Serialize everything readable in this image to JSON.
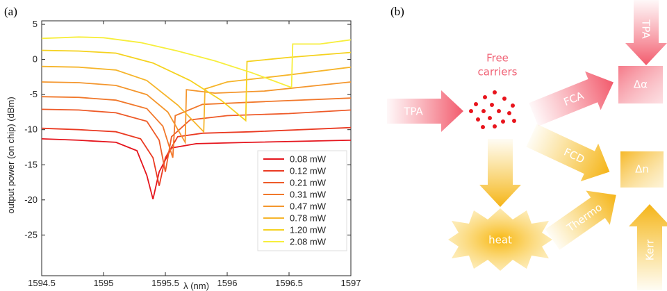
{
  "panel_labels": [
    "(a)",
    "(b)"
  ],
  "chart_data": {
    "type": "line",
    "xlabel": "λ (nm)",
    "ylabel": "output power (on chip) (dBm)",
    "xlim": [
      1594.5,
      1597
    ],
    "ylim": [
      -30.8,
      5.5
    ],
    "xticks": [
      1594.5,
      1595,
      1595.5,
      1596,
      1596.5,
      1597
    ],
    "yticks": [
      5,
      0,
      -5,
      -10,
      -15,
      -20,
      -25
    ],
    "legend": "lower right",
    "series": [
      {
        "name": "0.08 mW",
        "color": "#e5151d",
        "x": [
          1594.5,
          1594.8,
          1595.1,
          1595.27,
          1595.35,
          1595.4,
          1595.45,
          1595.55,
          1595.75,
          1596.2,
          1597
        ],
        "values": [
          -11.3,
          -11.5,
          -11.8,
          -13,
          -16.5,
          -19.9,
          -16,
          -12.6,
          -12,
          -11.8,
          -11.5
        ]
      },
      {
        "name": "0.12 mW",
        "color": "#ea3a22",
        "x": [
          1594.5,
          1594.8,
          1595.1,
          1595.3,
          1595.4,
          1595.45,
          1595.5,
          1595.6,
          1595.8,
          1596.2,
          1597
        ],
        "values": [
          -9.8,
          -10,
          -10.3,
          -11.3,
          -14,
          -18,
          -14,
          -11,
          -10.5,
          -10.3,
          -9.7
        ]
      },
      {
        "name": "0.21 mW",
        "color": "#ee5a28",
        "x": [
          1594.5,
          1594.8,
          1595.1,
          1595.35,
          1595.45,
          1595.5,
          1595.55,
          1595.7,
          1596,
          1596.5,
          1597
        ],
        "values": [
          -7.1,
          -7.2,
          -7.6,
          -8.8,
          -11.5,
          -16,
          -11,
          -8.6,
          -8,
          -7.7,
          -7.2
        ]
      },
      {
        "name": "0.31 mW",
        "color": "#f1782b",
        "x": [
          1594.5,
          1594.8,
          1595.1,
          1595.35,
          1595.48,
          1595.56,
          1595.58,
          1595.8,
          1596.3,
          1597
        ],
        "values": [
          -5.3,
          -5.4,
          -5.8,
          -7,
          -9.5,
          -14,
          -8,
          -6.4,
          -6,
          -5.5
        ]
      },
      {
        "name": "0.47 mW",
        "color": "#f4962d",
        "x": [
          1594.5,
          1594.8,
          1595.1,
          1595.35,
          1595.52,
          1595.66,
          1595.67,
          1595.9,
          1596.3,
          1597
        ],
        "values": [
          -3.2,
          -3.3,
          -3.7,
          -5,
          -7.5,
          -11.8,
          -4.3,
          -4.8,
          -4.5,
          -3.2
        ]
      },
      {
        "name": "0.78 mW",
        "color": "#f6b52b",
        "x": [
          1594.5,
          1594.8,
          1595.1,
          1595.35,
          1595.6,
          1595.81,
          1595.82,
          1596,
          1596.5,
          1597
        ],
        "values": [
          -1.0,
          -1.1,
          -1.5,
          -3,
          -6.5,
          -10.3,
          -4.2,
          -3.2,
          -2.2,
          -1.1
        ]
      },
      {
        "name": "1.20 mW",
        "color": "#f5d21f",
        "x": [
          1594.5,
          1594.8,
          1595.1,
          1595.4,
          1595.7,
          1595.95,
          1596.15,
          1596.16,
          1596.5,
          1597
        ],
        "values": [
          1.3,
          1.2,
          0.9,
          -0.5,
          -3,
          -5.8,
          -8.7,
          -0.3,
          0.3,
          1.0
        ]
      },
      {
        "name": "2.08 mW",
        "color": "#f7ee3c",
        "x": [
          1594.5,
          1594.8,
          1595.0,
          1595.3,
          1595.6,
          1595.9,
          1596.2,
          1596.52,
          1596.53,
          1596.75,
          1597
        ],
        "values": [
          3.0,
          3.2,
          3.1,
          2.4,
          1.2,
          -0.2,
          -1.9,
          -4.0,
          2.2,
          2.2,
          2.8
        ]
      }
    ]
  },
  "diagram": {
    "free_carriers": [
      "Free",
      "carriers"
    ],
    "tpa_in": "TPA",
    "tpa_top": "TPA",
    "fca": "FCA",
    "fcd": "FCD",
    "thermo": "Thermo",
    "kerr": "Kerr",
    "heat": "heat",
    "delta_alpha": "Δα",
    "delta_n": "Δn"
  }
}
